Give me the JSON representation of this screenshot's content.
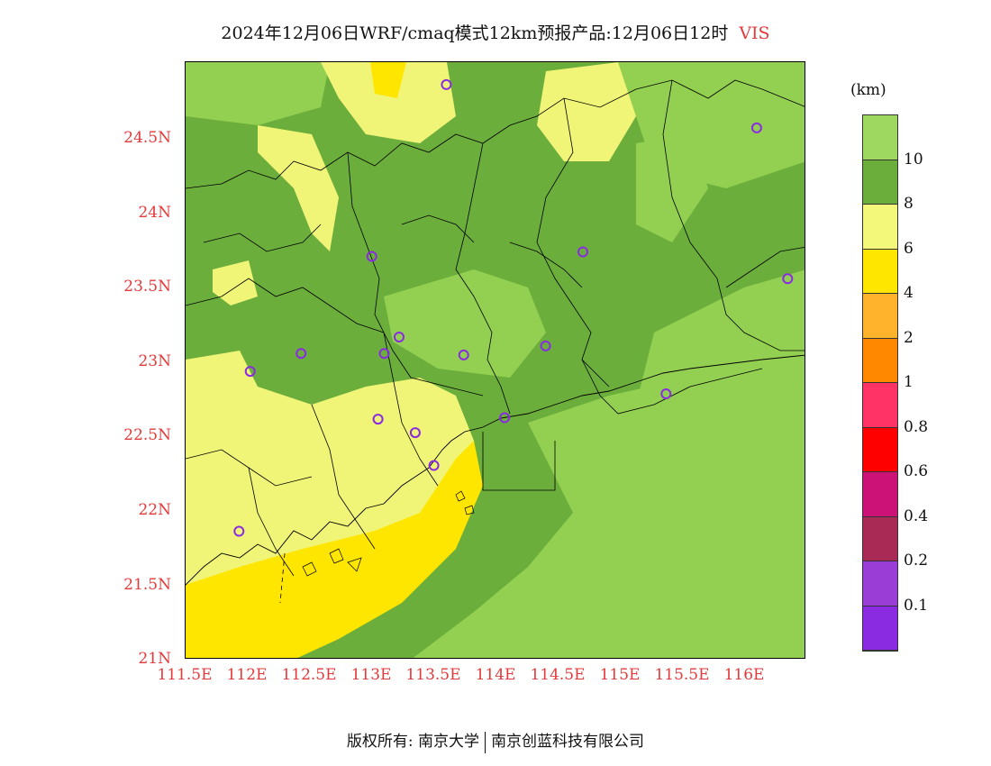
{
  "title": {
    "main": "2024年12月06日WRF/cmaq模式12km预报产品:12月06日12时",
    "variable": "VIS"
  },
  "legend": {
    "unit": "(km)",
    "colors": [
      "#9ed860",
      "#6cae3c",
      "#f3f77a",
      "#ffe600",
      "#ffb22b",
      "#ff8800",
      "#ff3366",
      "#ff0000",
      "#cc1177",
      "#a82a55",
      "#9a3dd6",
      "#8a2be2"
    ],
    "labels": [
      "10",
      "8",
      "6",
      "4",
      "2",
      "1",
      "0.8",
      "0.6",
      "0.4",
      "0.2",
      "0.1"
    ]
  },
  "axes": {
    "lat_labels": [
      "24.5N",
      "24N",
      "23.5N",
      "23N",
      "22.5N",
      "22N",
      "21.5N",
      "21N"
    ],
    "lon_labels": [
      "111.5E",
      "112E",
      "112.5E",
      "113E",
      "113.5E",
      "114E",
      "114.5E",
      "115E",
      "115.5E",
      "116E"
    ]
  },
  "map": {
    "land_color": "#6cae3c",
    "sea_color": "#93d052",
    "haze_color": "#f0f577",
    "low_vis_color": "#ffe600",
    "boundary_color": "#000000",
    "station_color": "#8a2be2",
    "stations": [
      {
        "lon": 113.6,
        "lat": 24.85
      },
      {
        "lon": 116.1,
        "lat": 24.56
      },
      {
        "lon": 113.0,
        "lat": 23.7
      },
      {
        "lon": 114.7,
        "lat": 23.73
      },
      {
        "lon": 116.35,
        "lat": 23.55
      },
      {
        "lon": 112.43,
        "lat": 23.05
      },
      {
        "lon": 113.1,
        "lat": 23.05
      },
      {
        "lon": 113.22,
        "lat": 23.16
      },
      {
        "lon": 113.74,
        "lat": 23.04
      },
      {
        "lon": 114.4,
        "lat": 23.1
      },
      {
        "lon": 112.02,
        "lat": 22.93
      },
      {
        "lon": 115.37,
        "lat": 22.78
      },
      {
        "lon": 113.05,
        "lat": 22.61
      },
      {
        "lon": 113.35,
        "lat": 22.52
      },
      {
        "lon": 114.07,
        "lat": 22.62
      },
      {
        "lon": 113.5,
        "lat": 22.3
      },
      {
        "lon": 111.93,
        "lat": 21.86
      }
    ]
  },
  "footer": {
    "left": "版权所有: 南京大学",
    "right": "南京创蓝科技有限公司"
  }
}
